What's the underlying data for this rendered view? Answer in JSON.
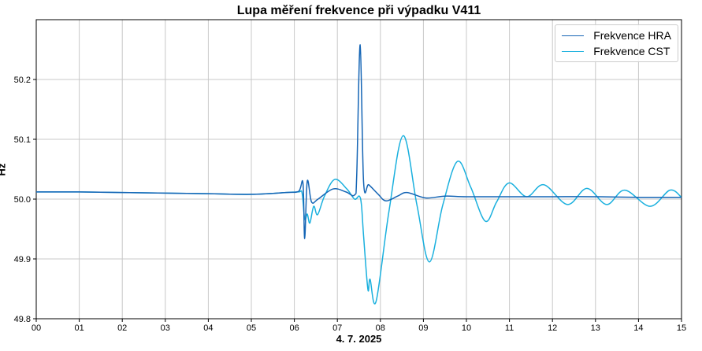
{
  "chart_data": {
    "type": "line",
    "title": "Lupa měření frekvence při výpadku V411",
    "xlabel": "4. 7. 2025",
    "ylabel": "Hz",
    "xlim": [
      0,
      15
    ],
    "ylim": [
      49.8,
      50.3
    ],
    "x_ticks": [
      "00",
      "01",
      "02",
      "03",
      "04",
      "05",
      "06",
      "07",
      "08",
      "09",
      "10",
      "11",
      "12",
      "13",
      "14",
      "15"
    ],
    "y_ticks": [
      "49.8",
      "49.9",
      "50.0",
      "50.1",
      "50.2"
    ],
    "grid": true,
    "legend_position": "top-right",
    "series": [
      {
        "name": "Frekvence HRA",
        "color": "#1565b5",
        "points": [
          [
            0,
            50.012
          ],
          [
            1,
            50.012
          ],
          [
            2,
            50.011
          ],
          [
            3,
            50.01
          ],
          [
            4,
            50.009
          ],
          [
            5,
            50.008
          ],
          [
            5.8,
            50.011
          ],
          [
            6.1,
            50.013
          ],
          [
            6.2,
            50.027
          ],
          [
            6.24,
            49.934
          ],
          [
            6.3,
            50.03
          ],
          [
            6.4,
            49.995
          ],
          [
            6.55,
            50.0
          ],
          [
            6.9,
            50.017
          ],
          [
            7.2,
            50.012
          ],
          [
            7.4,
            50.007
          ],
          [
            7.45,
            50.04
          ],
          [
            7.53,
            50.258
          ],
          [
            7.61,
            50.028
          ],
          [
            7.73,
            50.024
          ],
          [
            7.95,
            50.008
          ],
          [
            8.13,
            49.997
          ],
          [
            8.4,
            50.005
          ],
          [
            8.62,
            50.011
          ],
          [
            9.05,
            50.002
          ],
          [
            9.5,
            50.005
          ],
          [
            10,
            50.004
          ],
          [
            11,
            50.004
          ],
          [
            12,
            50.004
          ],
          [
            13,
            50.004
          ],
          [
            14,
            50.003
          ],
          [
            15,
            50.003
          ]
        ]
      },
      {
        "name": "Frekvence CST",
        "color": "#1ab0de",
        "points": [
          [
            0,
            50.012
          ],
          [
            1,
            50.012
          ],
          [
            2,
            50.011
          ],
          [
            3,
            50.01
          ],
          [
            4,
            50.009
          ],
          [
            5,
            50.008
          ],
          [
            5.8,
            50.011
          ],
          [
            6.1,
            50.012
          ],
          [
            6.18,
            50.01
          ],
          [
            6.24,
            49.967
          ],
          [
            6.3,
            49.975
          ],
          [
            6.36,
            49.96
          ],
          [
            6.45,
            49.988
          ],
          [
            6.54,
            49.974
          ],
          [
            6.7,
            50.005
          ],
          [
            6.94,
            50.033
          ],
          [
            7.22,
            50.017
          ],
          [
            7.4,
            50.0
          ],
          [
            7.51,
            50.005
          ],
          [
            7.56,
            49.99
          ],
          [
            7.61,
            49.938
          ],
          [
            7.71,
            49.849
          ],
          [
            7.76,
            49.866
          ],
          [
            7.9,
            49.829
          ],
          [
            8.2,
            49.98
          ],
          [
            8.53,
            50.106
          ],
          [
            8.85,
            49.99
          ],
          [
            9.14,
            49.895
          ],
          [
            9.45,
            49.99
          ],
          [
            9.79,
            50.063
          ],
          [
            10.1,
            50.02
          ],
          [
            10.44,
            49.963
          ],
          [
            10.7,
            49.995
          ],
          [
            10.99,
            50.027
          ],
          [
            11.4,
            50.004
          ],
          [
            11.8,
            50.024
          ],
          [
            12.35,
            49.991
          ],
          [
            12.8,
            50.018
          ],
          [
            13.26,
            49.991
          ],
          [
            13.68,
            50.015
          ],
          [
            14.27,
            49.988
          ],
          [
            14.73,
            50.015
          ],
          [
            15,
            50.003
          ]
        ]
      }
    ]
  }
}
